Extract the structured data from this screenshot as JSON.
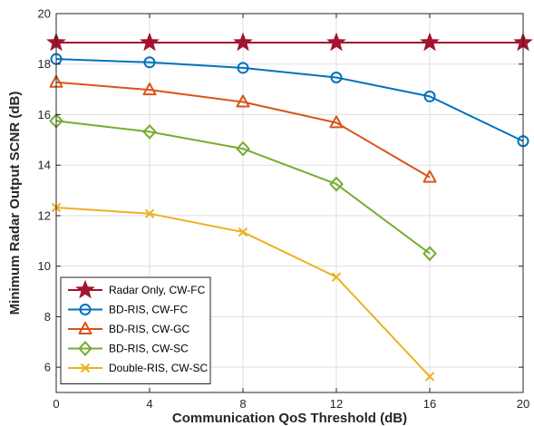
{
  "chart_data": {
    "type": "line",
    "xlabel": "Communication QoS Threshold (dB)",
    "ylabel": "Minimum Radar Output SCNR (dB)",
    "xlim": [
      0,
      20
    ],
    "ylim": [
      5,
      20
    ],
    "xticks": [
      0,
      4,
      8,
      12,
      16,
      20
    ],
    "yticks": [
      6,
      8,
      10,
      12,
      14,
      16,
      18,
      20
    ],
    "grid": true,
    "legend_position": "bottom-left",
    "series": [
      {
        "name": "Radar Only, CW-FC",
        "marker": "star",
        "color": "#A2142F",
        "x": [
          0,
          4,
          8,
          12,
          16,
          20
        ],
        "y": [
          18.85,
          18.85,
          18.85,
          18.85,
          18.85,
          18.85
        ]
      },
      {
        "name": "BD-RIS, CW-FC",
        "marker": "circle",
        "color": "#0072BD",
        "x": [
          0,
          4,
          8,
          12,
          16,
          20
        ],
        "y": [
          18.2,
          18.07,
          17.85,
          17.47,
          16.72,
          14.95
        ]
      },
      {
        "name": "BD-RIS, CW-GC",
        "marker": "triangle",
        "color": "#D95319",
        "x": [
          0,
          4,
          8,
          12,
          16
        ],
        "y": [
          17.28,
          16.98,
          16.5,
          15.68,
          13.52
        ]
      },
      {
        "name": "BD-RIS, CW-SC",
        "marker": "diamond",
        "color": "#77AC30",
        "x": [
          0,
          4,
          8,
          12,
          16
        ],
        "y": [
          15.75,
          15.32,
          14.65,
          13.25,
          10.5
        ]
      },
      {
        "name": "Double-RIS, CW-SC",
        "marker": "x",
        "color": "#EDB120",
        "x": [
          0,
          4,
          8,
          12,
          16
        ],
        "y": [
          12.32,
          12.08,
          11.35,
          9.57,
          5.63
        ]
      }
    ]
  }
}
